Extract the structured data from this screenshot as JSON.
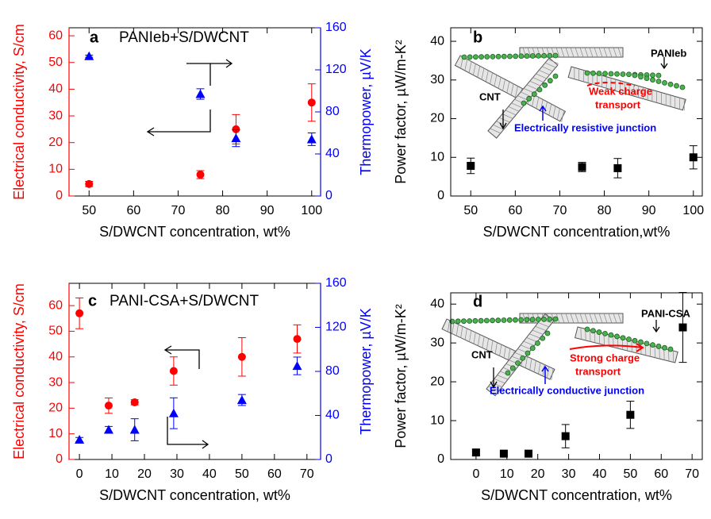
{
  "chart_data": [
    {
      "type": "scatter",
      "label": "a",
      "title": "PANIeb+S/DWCNT",
      "x_label": "S/DWCNT concentration, wt%",
      "y_label": "Electrical conductivity, S/cm",
      "y2_label": "Thermopower, µV/K",
      "xlim": [
        45.5,
        102
      ],
      "xticks": [
        50,
        60,
        70,
        80,
        90,
        100
      ],
      "ylim": [
        0,
        63
      ],
      "yticks": [
        0,
        10,
        20,
        30,
        40,
        50,
        60
      ],
      "y_color": "#ff0000",
      "y2lim": [
        0,
        160
      ],
      "y2ticks": [
        0,
        40,
        80,
        120,
        160
      ],
      "y2_color": "#0000ff",
      "series": [
        {
          "color": "#ff0000",
          "marker": "circle",
          "x": [
            50,
            75,
            83,
            100
          ],
          "values": [
            4.5,
            8,
            25,
            35
          ],
          "errors": [
            1,
            1.5,
            5.5,
            7
          ]
        },
        {
          "color": "#0000ff",
          "marker": "triangle",
          "axis": "y2",
          "x": [
            50,
            75,
            83,
            100
          ],
          "values": [
            133,
            97,
            55,
            54
          ],
          "errors": [
            1,
            5,
            8,
            6
          ]
        }
      ]
    },
    {
      "type": "scatter",
      "label": "b",
      "x_label": "S/DWCNT concentration,wt%",
      "y_label": "Power factor, µW/m-K²",
      "xlim": [
        45.5,
        102
      ],
      "xticks": [
        50,
        60,
        70,
        80,
        90,
        100
      ],
      "ylim": [
        0,
        43.5
      ],
      "yticks": [
        0,
        10,
        20,
        30,
        40
      ],
      "y_color": "#000000",
      "series": [
        {
          "color": "#000000",
          "marker": "square",
          "x": [
            50,
            75,
            83,
            100
          ],
          "values": [
            7.8,
            7.5,
            7.2,
            10
          ],
          "errors": [
            2,
            1.2,
            2.5,
            3
          ]
        }
      ],
      "annotations": [
        {
          "text": "PANIeb",
          "color": "#000000"
        },
        {
          "text": "CNT",
          "color": "#000000"
        },
        {
          "text": "Weak charge",
          "color": "#ff0000"
        },
        {
          "text": "transport",
          "color": "#ff0000"
        },
        {
          "text": "Electrically resistive junction",
          "color": "#0000ff"
        }
      ]
    },
    {
      "type": "scatter",
      "label": "c",
      "title": "PANI-CSA+S/DWCNT",
      "x_label": "S/DWCNT concentration, wt%",
      "y_label": "Electrical conductivity, S/cm",
      "y2_label": "Thermopower, µV/K",
      "xlim": [
        -3.2,
        74.2
      ],
      "xticks": [
        0,
        10,
        20,
        30,
        40,
        50,
        60,
        70
      ],
      "ylim": [
        0,
        68.7
      ],
      "yticks": [
        0,
        10,
        20,
        30,
        40,
        50,
        60
      ],
      "y_color": "#ff0000",
      "y2lim": [
        0,
        160
      ],
      "y2ticks": [
        0,
        40,
        80,
        120,
        160
      ],
      "y2_color": "#0000ff",
      "series": [
        {
          "color": "#ff0000",
          "marker": "circle",
          "x": [
            0,
            9,
            17,
            29,
            50,
            67
          ],
          "values": [
            57,
            21,
            22.3,
            34.5,
            40,
            47
          ],
          "errors": [
            6,
            3,
            1,
            5.5,
            7.5,
            5.5
          ]
        },
        {
          "color": "#0000ff",
          "marker": "triangle",
          "axis": "y2",
          "x": [
            0,
            9,
            17,
            29,
            50,
            67
          ],
          "values": [
            18,
            27,
            27,
            42,
            54,
            85
          ],
          "errors": [
            2,
            3,
            10,
            14,
            5,
            8
          ]
        }
      ]
    },
    {
      "type": "scatter",
      "label": "d",
      "x_label": "S/DWCNT concentration, wt%",
      "y_label": "Power factor, µW/m-K²",
      "xlim": [
        -8.2,
        73.3
      ],
      "xticks": [
        0,
        10,
        20,
        30,
        40,
        50,
        60,
        70
      ],
      "ylim": [
        0,
        42.9
      ],
      "yticks": [
        0,
        10,
        20,
        30,
        40
      ],
      "y_color": "#000000",
      "series": [
        {
          "color": "#000000",
          "marker": "square",
          "x": [
            0,
            9,
            17,
            29,
            50,
            67
          ],
          "values": [
            1.8,
            1.5,
            1.5,
            6,
            11.5,
            34
          ],
          "errors": [
            0.8,
            0.5,
            0.5,
            3,
            3.5,
            9
          ]
        }
      ],
      "annotations": [
        {
          "text": "PANI-CSA",
          "color": "#000000"
        },
        {
          "text": "CNT",
          "color": "#000000"
        },
        {
          "text": "Strong charge",
          "color": "#ff0000"
        },
        {
          "text": "transport",
          "color": "#ff0000"
        },
        {
          "text": "Electrically conductive junction",
          "color": "#0000ff"
        }
      ]
    }
  ]
}
